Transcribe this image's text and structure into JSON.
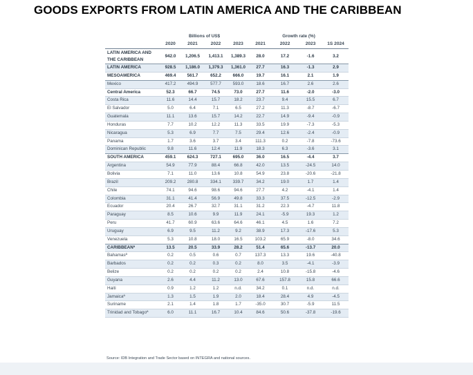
{
  "title": "GOODS EXPORTS FROM LATIN AMERICA AND THE CARIBBEAN",
  "table": {
    "group_headers": {
      "values": "Billions of US$",
      "growth": "Growth rate (%)"
    },
    "columns": [
      "2020",
      "2021",
      "2022",
      "2023",
      "2021",
      "2022",
      "2023",
      "1S 2024"
    ],
    "rows": [
      {
        "name": "LATIN AMERICA AND THE CARIBBEAN",
        "bold": true,
        "cells": [
          "942.0",
          "1,206.5",
          "1,413.1",
          "1,389.3",
          "28.0",
          "17.2",
          "-1.6",
          "3.2"
        ]
      },
      {
        "name": "LATIN AMERICA",
        "bold": true,
        "cells": [
          "928.5",
          "1,186.0",
          "1,379.3",
          "1,361.0",
          "27.7",
          "16.3",
          "-1.3",
          "2.9"
        ]
      },
      {
        "name": "MESOAMERICA",
        "bold": true,
        "cells": [
          "469.4",
          "561.7",
          "652.2",
          "666.0",
          "19.7",
          "16.1",
          "2.1",
          "1.9"
        ]
      },
      {
        "name": "Mexico",
        "bold": false,
        "cells": [
          "417.2",
          "494.9",
          "577.7",
          "593.0",
          "18.6",
          "16.7",
          "2.6",
          "2.6"
        ]
      },
      {
        "name": "Central America",
        "bold": true,
        "cells": [
          "52.3",
          "66.7",
          "74.5",
          "73.0",
          "27.7",
          "11.6",
          "-2.0",
          "-3.0"
        ]
      },
      {
        "name": "Costa Rica",
        "bold": false,
        "cells": [
          "11.6",
          "14.4",
          "15.7",
          "18.2",
          "23.7",
          "9.4",
          "15.5",
          "6.7"
        ]
      },
      {
        "name": "El Salvador",
        "bold": false,
        "cells": [
          "5.0",
          "6.4",
          "7.1",
          "6.5",
          "27.2",
          "11.3",
          "-8.7",
          "-6.7"
        ]
      },
      {
        "name": "Guatemala",
        "bold": false,
        "cells": [
          "11.1",
          "13.6",
          "15.7",
          "14.2",
          "22.7",
          "14.9",
          "-9.4",
          "-0.9"
        ]
      },
      {
        "name": "Honduras",
        "bold": false,
        "cells": [
          "7.7",
          "10.2",
          "12.2",
          "11.3",
          "33.5",
          "19.9",
          "-7.3",
          "-5.3"
        ]
      },
      {
        "name": "Nicaragua",
        "bold": false,
        "cells": [
          "5.3",
          "6.9",
          "7.7",
          "7.5",
          "29.4",
          "12.6",
          "-2.4",
          "-0.9"
        ]
      },
      {
        "name": "Panama",
        "bold": false,
        "cells": [
          "1.7",
          "3.6",
          "3.7",
          "3.4",
          "111.3",
          "0.2",
          "-7.8",
          "-73.6"
        ]
      },
      {
        "name": "Dominican Republic",
        "bold": false,
        "cells": [
          "9.8",
          "11.6",
          "12.4",
          "11.9",
          "18.3",
          "6.3",
          "-3.6",
          "3.1"
        ]
      },
      {
        "name": "SOUTH AMERICA",
        "bold": true,
        "cells": [
          "459.1",
          "624.3",
          "727.1",
          "695.0",
          "36.0",
          "16.5",
          "-4.4",
          "3.7"
        ]
      },
      {
        "name": "Argentina",
        "bold": false,
        "cells": [
          "54.9",
          "77.9",
          "88.4",
          "66.8",
          "42.0",
          "13.5",
          "-24.5",
          "14.0"
        ]
      },
      {
        "name": "Bolivia",
        "bold": false,
        "cells": [
          "7.1",
          "11.0",
          "13.6",
          "10.8",
          "54.9",
          "23.8",
          "-20.6",
          "-21.8"
        ]
      },
      {
        "name": "Brazil",
        "bold": false,
        "cells": [
          "209.2",
          "280.8",
          "334.1",
          "339.7",
          "34.2",
          "19.0",
          "1.7",
          "1.4"
        ]
      },
      {
        "name": "Chile",
        "bold": false,
        "cells": [
          "74.1",
          "94.6",
          "98.6",
          "94.6",
          "27.7",
          "4.2",
          "-4.1",
          "1.4"
        ]
      },
      {
        "name": "Colombia",
        "bold": false,
        "cells": [
          "31.1",
          "41.4",
          "56.9",
          "49.8",
          "33.3",
          "37.5",
          "-12.5",
          "-2.9"
        ]
      },
      {
        "name": "Ecuador",
        "bold": false,
        "cells": [
          "20.4",
          "26.7",
          "32.7",
          "31.1",
          "31.2",
          "22.3",
          "-4.7",
          "11.8"
        ]
      },
      {
        "name": "Paraguay",
        "bold": false,
        "cells": [
          "8.5",
          "10.6",
          "9.9",
          "11.9",
          "24.1",
          "-5.9",
          "19.3",
          "1.2"
        ]
      },
      {
        "name": "Peru",
        "bold": false,
        "cells": [
          "41.7",
          "60.9",
          "63.6",
          "64.6",
          "46.1",
          "4.5",
          "1.6",
          "7.2"
        ]
      },
      {
        "name": "Uruguay",
        "bold": false,
        "cells": [
          "6.9",
          "9.5",
          "11.2",
          "9.2",
          "38.9",
          "17.3",
          "-17.6",
          "5.3"
        ]
      },
      {
        "name": "Venezuela",
        "bold": false,
        "cells": [
          "5.3",
          "10.8",
          "18.0",
          "16.5",
          "103.2",
          "65.9",
          "-8.0",
          "34.6"
        ]
      },
      {
        "name": "CARIBBEANª",
        "bold": true,
        "cells": [
          "13.5",
          "20.5",
          "33.9",
          "28.2",
          "51.4",
          "65.6",
          "-13.7",
          "20.0"
        ]
      },
      {
        "name": "Bahamasª",
        "bold": false,
        "cells": [
          "0.2",
          "0.5",
          "0.6",
          "0.7",
          "137.3",
          "13.3",
          "19.6",
          "-40.8"
        ]
      },
      {
        "name": "Barbados",
        "bold": false,
        "cells": [
          "0.2",
          "0.2",
          "0.3",
          "0.2",
          "8.0",
          "3.5",
          "-4.1",
          "-3.9"
        ]
      },
      {
        "name": "Belize",
        "bold": false,
        "cells": [
          "0.2",
          "0.2",
          "0.2",
          "0.2",
          "2.4",
          "10.8",
          "-15.8",
          "-4.6"
        ]
      },
      {
        "name": "Guyana",
        "bold": false,
        "cells": [
          "2.6",
          "4.4",
          "11.2",
          "13.0",
          "67.6",
          "157.8",
          "15.8",
          "66.6"
        ]
      },
      {
        "name": "Haiti",
        "bold": false,
        "cells": [
          "0.9",
          "1.2",
          "1.2",
          "n.d.",
          "34.2",
          "0.1",
          "n.d.",
          "n.d."
        ]
      },
      {
        "name": "Jamaicaª",
        "bold": false,
        "cells": [
          "1.3",
          "1.5",
          "1.9",
          "2.0",
          "18.4",
          "28.4",
          "4.9",
          "-4.5"
        ]
      },
      {
        "name": "Suriname",
        "bold": false,
        "cells": [
          "2.1",
          "1.4",
          "1.8",
          "1.7",
          "-35.0",
          "30.7",
          "-5.9",
          "11.5"
        ]
      },
      {
        "name": "Trinidad and Tobagoª",
        "bold": false,
        "cells": [
          "6.0",
          "11.1",
          "16.7",
          "10.4",
          "84.6",
          "50.6",
          "-37.8",
          "-19.6"
        ]
      }
    ]
  },
  "source": "Source: IDB Integration and Trade Sector based on INTEGRA and national sources."
}
